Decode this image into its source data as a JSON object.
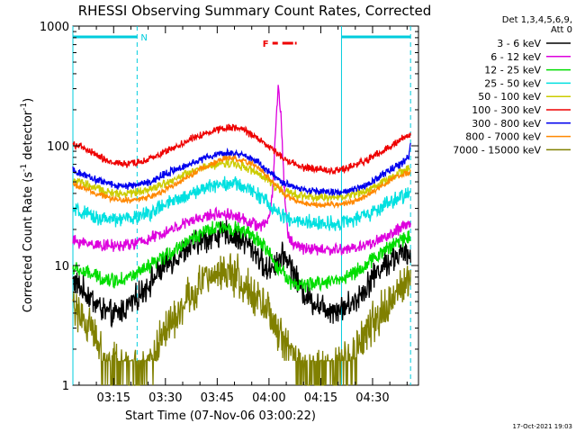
{
  "chart_data": {
    "type": "line",
    "title": "RHESSI Observing Summary Count Rates, Corrected",
    "xlabel": "Start Time (07-Nov-06 03:00:22)",
    "ylabel": "Corrected Count Rate (s⁻¹ detector⁻¹)",
    "ylabel_parts": [
      "Corrected Count Rate (s",
      "-1",
      " detector",
      "-1",
      ")"
    ],
    "y_scale": "log",
    "ylim": [
      1,
      1000
    ],
    "xlim_minutes": [
      3.2,
      103.3
    ],
    "yticks": [
      {
        "value": 1,
        "label": "1"
      },
      {
        "value": 10,
        "label": "10"
      },
      {
        "value": 100,
        "label": "100"
      },
      {
        "value": 1000,
        "label": "1000"
      }
    ],
    "xticks": [
      {
        "minute": 15,
        "label": "03:15"
      },
      {
        "minute": 30,
        "label": "03:30"
      },
      {
        "minute": 45,
        "label": "03:45"
      },
      {
        "minute": 60,
        "label": "04:00"
      },
      {
        "minute": 75,
        "label": "04:15"
      },
      {
        "minute": 90,
        "label": "04:30"
      }
    ],
    "legend_header": [
      "Det 1,3,4,5,6,9,",
      "Att 0"
    ],
    "legend_position": "right",
    "timestamp": "17-Oct-2021 19:03",
    "night_intervals": [
      {
        "start": 3.2,
        "end": 21.8,
        "label": "N"
      },
      {
        "start": 81.0,
        "end": 101.0,
        "label": ""
      }
    ],
    "flare_interval": {
      "start": 61.0,
      "end": 68.0,
      "label": "F"
    },
    "series": [
      {
        "name": "3 - 6 keV",
        "color": "#000000",
        "noise": 0.09,
        "points": [
          [
            3.2,
            7.5
          ],
          [
            8,
            5.5
          ],
          [
            12,
            4.2
          ],
          [
            15,
            3.8
          ],
          [
            18,
            4.3
          ],
          [
            22,
            5.5
          ],
          [
            26,
            7.5
          ],
          [
            30,
            10
          ],
          [
            35,
            13
          ],
          [
            40,
            16
          ],
          [
            45,
            18
          ],
          [
            48,
            18.5
          ],
          [
            50,
            17.5
          ],
          [
            53,
            16
          ],
          [
            55,
            14
          ],
          [
            57,
            12
          ],
          [
            59,
            9
          ],
          [
            61,
            10
          ],
          [
            63,
            11.5
          ],
          [
            65,
            12
          ],
          [
            67,
            9
          ],
          [
            69,
            6.5
          ],
          [
            72,
            5.2
          ],
          [
            75,
            4.6
          ],
          [
            78,
            4.3
          ],
          [
            81,
            4.4
          ],
          [
            84,
            4.8
          ],
          [
            87,
            6
          ],
          [
            90,
            8
          ],
          [
            93,
            10
          ],
          [
            96,
            11.5
          ],
          [
            98,
            12.5
          ],
          [
            101,
            12
          ]
        ]
      },
      {
        "name": "6 - 12 keV",
        "color": "#dd00dd",
        "noise": 0.04,
        "points": [
          [
            3.2,
            16
          ],
          [
            10,
            15
          ],
          [
            15,
            14.5
          ],
          [
            20,
            15
          ],
          [
            25,
            16.5
          ],
          [
            30,
            19
          ],
          [
            35,
            22
          ],
          [
            40,
            25
          ],
          [
            45,
            27
          ],
          [
            48,
            27
          ],
          [
            50,
            26
          ],
          [
            53,
            24
          ],
          [
            56,
            22
          ],
          [
            58,
            21
          ],
          [
            60,
            25
          ],
          [
            61,
            40
          ],
          [
            62,
            150
          ],
          [
            62.7,
            330
          ],
          [
            63.5,
            170
          ],
          [
            64.5,
            40
          ],
          [
            65.5,
            18
          ],
          [
            67,
            15
          ],
          [
            70,
            14
          ],
          [
            75,
            13.5
          ],
          [
            80,
            13.5
          ],
          [
            85,
            14
          ],
          [
            90,
            15.5
          ],
          [
            95,
            18
          ],
          [
            99,
            21
          ],
          [
            101,
            22
          ]
        ]
      },
      {
        "name": "12 - 25 keV",
        "color": "#00dd00",
        "noise": 0.05,
        "points": [
          [
            3.2,
            9.5
          ],
          [
            8,
            8.5
          ],
          [
            12,
            7.8
          ],
          [
            15,
            7.5
          ],
          [
            18,
            7.8
          ],
          [
            22,
            8.5
          ],
          [
            26,
            10
          ],
          [
            30,
            12
          ],
          [
            35,
            15
          ],
          [
            40,
            18.5
          ],
          [
            45,
            20.5
          ],
          [
            48,
            21
          ],
          [
            50,
            20.5
          ],
          [
            53,
            19
          ],
          [
            56,
            17
          ],
          [
            58,
            15
          ],
          [
            60,
            13
          ],
          [
            61,
            11
          ],
          [
            62,
            10
          ],
          [
            63,
            9
          ],
          [
            64,
            9.5
          ],
          [
            65,
            8
          ],
          [
            67,
            7
          ],
          [
            70,
            6.8
          ],
          [
            73,
            7
          ],
          [
            76,
            7.3
          ],
          [
            80,
            7.6
          ],
          [
            84,
            8.5
          ],
          [
            88,
            10
          ],
          [
            92,
            12.5
          ],
          [
            96,
            15
          ],
          [
            99,
            17
          ],
          [
            101,
            17.5
          ]
        ]
      },
      {
        "name": "25 - 50 keV",
        "color": "#00e0e0",
        "noise": 0.05,
        "points": [
          [
            3.2,
            29
          ],
          [
            8,
            26
          ],
          [
            12,
            24.5
          ],
          [
            15,
            24
          ],
          [
            18,
            24.5
          ],
          [
            22,
            25.5
          ],
          [
            26,
            28
          ],
          [
            30,
            32
          ],
          [
            35,
            37
          ],
          [
            40,
            43
          ],
          [
            45,
            48
          ],
          [
            48,
            49
          ],
          [
            50,
            48
          ],
          [
            53,
            45
          ],
          [
            56,
            41
          ],
          [
            58,
            37
          ],
          [
            60,
            32
          ],
          [
            62,
            28
          ],
          [
            64,
            26
          ],
          [
            66,
            24
          ],
          [
            70,
            23
          ],
          [
            75,
            22.5
          ],
          [
            80,
            22.5
          ],
          [
            84,
            24
          ],
          [
            88,
            26
          ],
          [
            92,
            30
          ],
          [
            96,
            35
          ],
          [
            99,
            38
          ],
          [
            101,
            40
          ]
        ]
      },
      {
        "name": "50 - 100 keV",
        "color": "#cccc00",
        "noise": 0.03,
        "points": [
          [
            3.2,
            52
          ],
          [
            8,
            46
          ],
          [
            12,
            42
          ],
          [
            15,
            40
          ],
          [
            18,
            40
          ],
          [
            22,
            41
          ],
          [
            26,
            44
          ],
          [
            30,
            49
          ],
          [
            35,
            56
          ],
          [
            40,
            64
          ],
          [
            45,
            70
          ],
          [
            48,
            72
          ],
          [
            50,
            71
          ],
          [
            53,
            67
          ],
          [
            56,
            60
          ],
          [
            58,
            55
          ],
          [
            60,
            51
          ],
          [
            62,
            46
          ],
          [
            64,
            42
          ],
          [
            66,
            40
          ],
          [
            70,
            38
          ],
          [
            75,
            37
          ],
          [
            80,
            37
          ],
          [
            84,
            39
          ],
          [
            88,
            42
          ],
          [
            92,
            48
          ],
          [
            96,
            55
          ],
          [
            99,
            62
          ],
          [
            101,
            65
          ]
        ]
      },
      {
        "name": "100 - 300 keV",
        "color": "#ee0000",
        "noise": 0.025,
        "points": [
          [
            3.2,
            105
          ],
          [
            8,
            90
          ],
          [
            12,
            78
          ],
          [
            15,
            72
          ],
          [
            18,
            70
          ],
          [
            22,
            72
          ],
          [
            26,
            78
          ],
          [
            30,
            90
          ],
          [
            35,
            105
          ],
          [
            40,
            122
          ],
          [
            45,
            138
          ],
          [
            48,
            144
          ],
          [
            50,
            142
          ],
          [
            53,
            134
          ],
          [
            56,
            120
          ],
          [
            58,
            108
          ],
          [
            60,
            98
          ],
          [
            62,
            88
          ],
          [
            64,
            80
          ],
          [
            66,
            74
          ],
          [
            70,
            66
          ],
          [
            75,
            63
          ],
          [
            80,
            63
          ],
          [
            84,
            67
          ],
          [
            88,
            75
          ],
          [
            92,
            88
          ],
          [
            96,
            102
          ],
          [
            99,
            118
          ],
          [
            101,
            122
          ]
        ]
      },
      {
        "name": "300 - 800 keV",
        "color": "#0000ee",
        "noise": 0.025,
        "points": [
          [
            3.2,
            62
          ],
          [
            8,
            55
          ],
          [
            12,
            50
          ],
          [
            15,
            47
          ],
          [
            18,
            46
          ],
          [
            22,
            47
          ],
          [
            26,
            51
          ],
          [
            30,
            58
          ],
          [
            35,
            67
          ],
          [
            40,
            77
          ],
          [
            45,
            85
          ],
          [
            48,
            87
          ],
          [
            50,
            86
          ],
          [
            53,
            82
          ],
          [
            56,
            75
          ],
          [
            58,
            68
          ],
          [
            60,
            60
          ],
          [
            62,
            54
          ],
          [
            64,
            49
          ],
          [
            66,
            46
          ],
          [
            70,
            43
          ],
          [
            75,
            41
          ],
          [
            80,
            41
          ],
          [
            84,
            43
          ],
          [
            88,
            47
          ],
          [
            92,
            55
          ],
          [
            96,
            65
          ],
          [
            99,
            73
          ],
          [
            100.5,
            80
          ],
          [
            101,
            112
          ]
        ]
      },
      {
        "name": "800 - 7000 keV",
        "color": "#ff8800",
        "noise": 0.02,
        "points": [
          [
            3.2,
            48
          ],
          [
            8,
            42
          ],
          [
            12,
            38
          ],
          [
            15,
            36
          ],
          [
            18,
            35
          ],
          [
            22,
            35.5
          ],
          [
            26,
            38
          ],
          [
            30,
            43
          ],
          [
            35,
            52
          ],
          [
            40,
            63
          ],
          [
            45,
            74
          ],
          [
            48,
            80
          ],
          [
            50,
            79
          ],
          [
            53,
            75
          ],
          [
            56,
            68
          ],
          [
            58,
            61
          ],
          [
            60,
            54
          ],
          [
            62,
            47
          ],
          [
            64,
            41
          ],
          [
            66,
            37
          ],
          [
            70,
            33
          ],
          [
            75,
            32
          ],
          [
            80,
            32
          ],
          [
            84,
            34
          ],
          [
            88,
            38
          ],
          [
            92,
            45
          ],
          [
            96,
            53
          ],
          [
            99,
            58
          ],
          [
            101,
            60
          ]
        ]
      },
      {
        "name": "7000 - 15000 keV",
        "color": "#808000",
        "noise": 0.14,
        "floor": 1.6,
        "points": [
          [
            3.2,
            5
          ],
          [
            6,
            3.5
          ],
          [
            10,
            2.4
          ],
          [
            12,
            1.6
          ],
          [
            15,
            1.5
          ],
          [
            18,
            1.3
          ],
          [
            22,
            1.3
          ],
          [
            26,
            1.6
          ],
          [
            29,
            2.5
          ],
          [
            32,
            3.5
          ],
          [
            35,
            4.8
          ],
          [
            38,
            6
          ],
          [
            41,
            7.5
          ],
          [
            44,
            8.5
          ],
          [
            47,
            9
          ],
          [
            50,
            8.5
          ],
          [
            53,
            7.2
          ],
          [
            56,
            5.6
          ],
          [
            59,
            4.2
          ],
          [
            62,
            3
          ],
          [
            65,
            2.2
          ],
          [
            68,
            1.6
          ],
          [
            72,
            1.4
          ],
          [
            76,
            1.3
          ],
          [
            80,
            1.4
          ],
          [
            84,
            1.7
          ],
          [
            87,
            2.3
          ],
          [
            90,
            3.2
          ],
          [
            94,
            4.6
          ],
          [
            97,
            6
          ],
          [
            99,
            7
          ],
          [
            101,
            7.5
          ]
        ]
      }
    ]
  }
}
